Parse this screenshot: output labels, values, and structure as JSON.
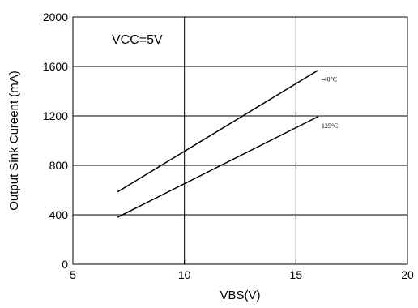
{
  "chart_data": {
    "type": "line",
    "title": "",
    "xlabel": "VBS(V)",
    "ylabel": "Output Sink Cureent (mA)",
    "xlim": [
      5,
      20
    ],
    "ylim": [
      0,
      2000
    ],
    "xticks": [
      5,
      10,
      15,
      20
    ],
    "yticks": [
      0,
      400,
      800,
      1200,
      1600,
      2000
    ],
    "grid": true,
    "annotation": "VCC=5V",
    "series": [
      {
        "name": "-40°C",
        "x": [
          7,
          16
        ],
        "y": [
          585,
          1570
        ]
      },
      {
        "name": "125°C",
        "x": [
          7,
          16
        ],
        "y": [
          380,
          1195
        ]
      }
    ]
  }
}
